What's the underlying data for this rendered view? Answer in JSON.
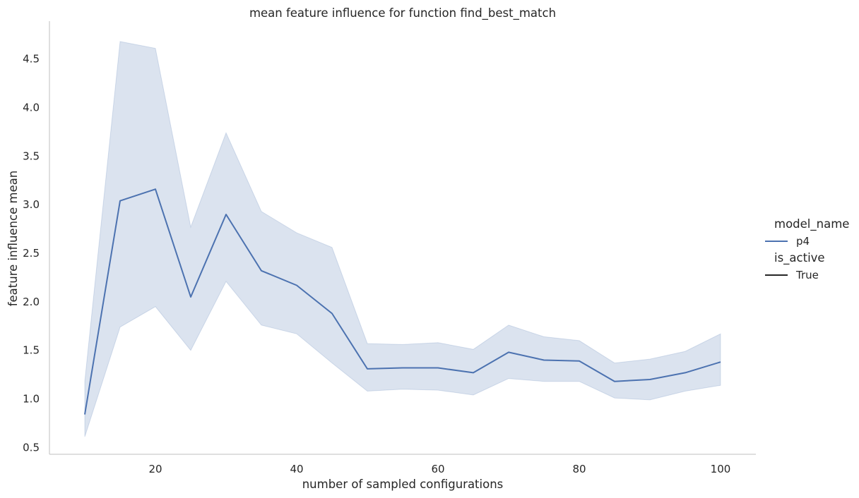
{
  "chart_data": {
    "type": "line",
    "title": "mean feature influence for function find_best_match",
    "xlabel": "number of sampled configurations",
    "ylabel": "feature influence mean",
    "xlim": [
      5,
      105
    ],
    "ylim": [
      0.43,
      4.89
    ],
    "xticks": [
      20,
      40,
      60,
      80,
      100
    ],
    "yticks": [
      0.5,
      1.0,
      1.5,
      2.0,
      2.5,
      3.0,
      3.5,
      4.0,
      4.5
    ],
    "grid": false,
    "legend_position": "right",
    "legend": {
      "groups": [
        {
          "title": "model_name",
          "entries": [
            {
              "label": "p4",
              "color": "#4c72b0"
            }
          ]
        },
        {
          "title": "is_active",
          "entries": [
            {
              "label": "True",
              "color": "#262626"
            }
          ]
        }
      ]
    },
    "series": [
      {
        "name": "p4",
        "color": "#4c72b0",
        "x": [
          10,
          15,
          20,
          25,
          30,
          35,
          40,
          45,
          50,
          55,
          60,
          65,
          70,
          75,
          80,
          85,
          90,
          95,
          100
        ],
        "y": [
          0.84,
          3.04,
          3.16,
          2.05,
          2.9,
          2.32,
          2.17,
          1.88,
          1.31,
          1.32,
          1.32,
          1.27,
          1.48,
          1.4,
          1.39,
          1.18,
          1.2,
          1.27,
          1.38
        ],
        "ci_lower": [
          0.61,
          1.74,
          1.95,
          1.5,
          2.21,
          1.76,
          1.67,
          1.37,
          1.08,
          1.1,
          1.09,
          1.04,
          1.21,
          1.18,
          1.18,
          1.01,
          0.99,
          1.08,
          1.14
        ],
        "ci_upper": [
          1.18,
          4.68,
          4.61,
          2.77,
          3.74,
          2.93,
          2.71,
          2.56,
          1.57,
          1.56,
          1.58,
          1.51,
          1.76,
          1.64,
          1.6,
          1.37,
          1.41,
          1.49,
          1.67
        ]
      }
    ]
  }
}
